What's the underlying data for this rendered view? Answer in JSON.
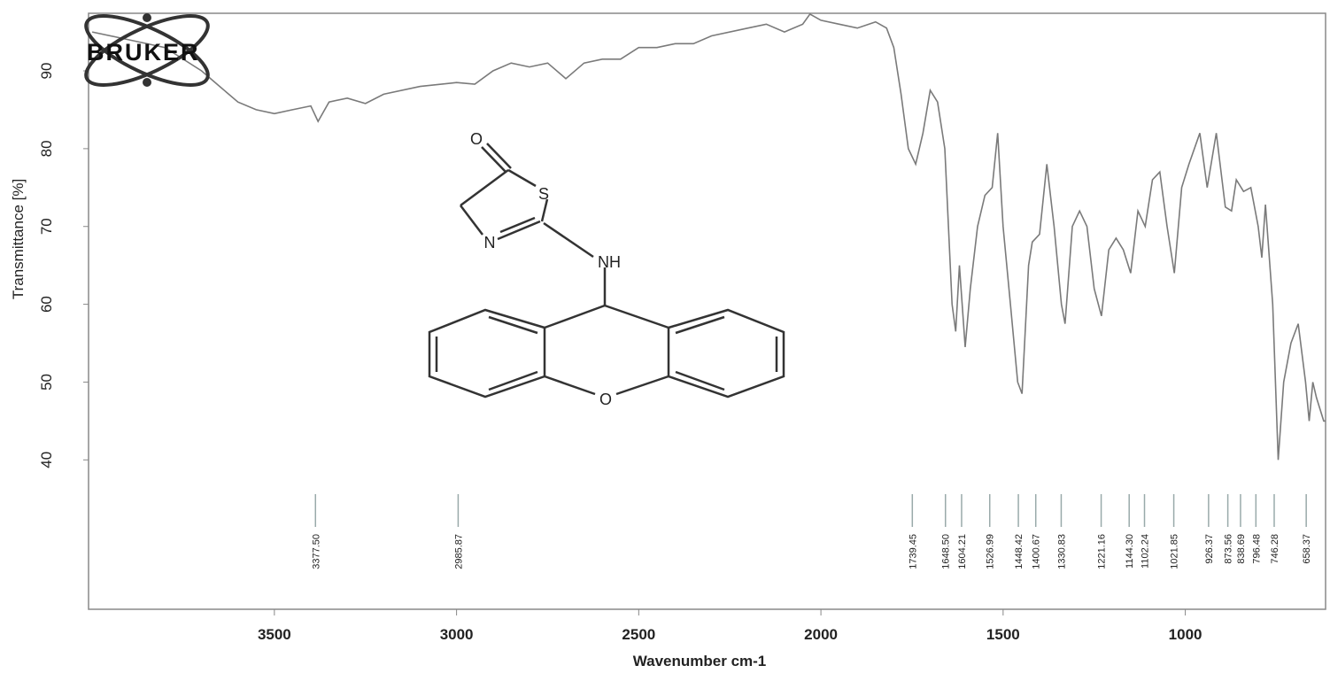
{
  "logo_text": "BRUKER",
  "chart_data": {
    "type": "line",
    "title": "",
    "xlabel": "Wavenumber cm-1",
    "ylabel": "Transmittance [%]",
    "xlim": [
      4010,
      615
    ],
    "ylim": [
      20.8,
      97.4
    ],
    "x_reversed": true,
    "grid": false,
    "x_ticks": [
      3500,
      3000,
      2500,
      2000,
      1500,
      1000
    ],
    "y_ticks": [
      40,
      50,
      60,
      70,
      80,
      90
    ],
    "line_color": "#7a7a7a",
    "series": [
      {
        "x": [
          4000,
          3900,
          3800,
          3700,
          3650,
          3600,
          3550,
          3500,
          3450,
          3400,
          3380,
          3350,
          3300,
          3250,
          3200,
          3100,
          3000,
          2950,
          2900,
          2850,
          2800,
          2750,
          2700,
          2650,
          2600,
          2550,
          2500,
          2450,
          2400,
          2350,
          2300,
          2200,
          2150,
          2100,
          2050,
          2030,
          2000,
          1950,
          1900,
          1850,
          1820,
          1800,
          1780,
          1760,
          1740,
          1720,
          1700,
          1680,
          1660,
          1650,
          1640,
          1630,
          1620,
          1604,
          1590,
          1570,
          1550,
          1530,
          1515,
          1500,
          1480,
          1460,
          1448,
          1430,
          1420,
          1400,
          1380,
          1360,
          1340,
          1330,
          1310,
          1290,
          1270,
          1250,
          1230,
          1210,
          1190,
          1170,
          1150,
          1130,
          1110,
          1090,
          1070,
          1050,
          1030,
          1010,
          990,
          960,
          940,
          915,
          890,
          873,
          860,
          840,
          820,
          800,
          790,
          780,
          760,
          745,
          730,
          710,
          690,
          670,
          660,
          650,
          640,
          620,
          615
        ],
        "y": [
          95,
          94,
          93,
          90,
          88,
          86,
          85,
          84.5,
          85,
          85.5,
          83.5,
          86,
          86.5,
          85.8,
          87,
          88,
          88.5,
          88.3,
          90,
          91,
          90.5,
          91,
          89,
          91,
          91.5,
          91.5,
          93,
          93,
          93.5,
          93.5,
          94.5,
          95.5,
          96,
          95,
          96,
          97.3,
          96.5,
          96,
          95.5,
          96.3,
          95.5,
          93,
          87,
          80,
          78,
          82,
          87.5,
          86,
          80,
          70,
          60,
          56.5,
          65,
          54.5,
          62,
          70,
          74,
          75,
          82,
          70,
          60,
          50,
          48.5,
          65,
          68,
          69,
          78,
          70,
          60,
          57.5,
          70,
          72,
          70,
          62,
          58.5,
          67,
          68.5,
          67,
          64,
          72,
          70,
          76,
          77,
          70,
          64,
          75,
          78,
          82,
          75,
          82,
          72.5,
          72,
          76,
          74.5,
          75,
          70,
          66,
          72.8,
          60,
          40,
          50,
          55,
          57.5,
          50,
          45,
          50,
          48,
          45,
          45
        ]
      }
    ],
    "peak_labels": [
      "3377.50",
      "2985.87",
      "1739.45",
      "1648.50",
      "1604.21",
      "1526.99",
      "1448.42",
      "1400.67",
      "1330.83",
      "1221.16",
      "1144.30",
      "1102.24",
      "1021.85",
      "926.37",
      "873.56",
      "838.69",
      "796.48",
      "746.28",
      "658.37"
    ]
  },
  "molecule": {
    "atom_labels": {
      "carbonyl_o": "O",
      "s": "S",
      "n": "N",
      "nh": "NH",
      "ring_o": "O"
    }
  }
}
